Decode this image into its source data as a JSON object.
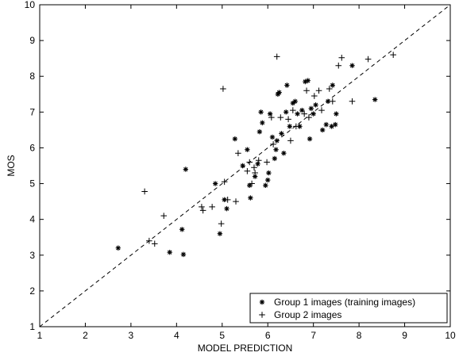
{
  "chart_data": {
    "type": "scatter",
    "xlabel": "MODEL PREDICTION",
    "ylabel": "MOS",
    "xlim": [
      1,
      10
    ],
    "ylim": [
      1,
      10
    ],
    "xticks": [
      1,
      2,
      3,
      4,
      5,
      6,
      7,
      8,
      9,
      10
    ],
    "yticks": [
      1,
      2,
      3,
      4,
      5,
      6,
      7,
      8,
      9,
      10
    ],
    "grid": false,
    "legend_position": "bottom-right",
    "reference_line": {
      "style": "dashed",
      "from": [
        1,
        1
      ],
      "to": [
        10,
        10
      ]
    },
    "series": [
      {
        "name": "Group 1 images (training images)",
        "marker": "asterisk",
        "points": [
          [
            2.72,
            3.2
          ],
          [
            3.85,
            3.08
          ],
          [
            4.15,
            3.02
          ],
          [
            4.12,
            3.72
          ],
          [
            4.2,
            5.4
          ],
          [
            4.85,
            5.0
          ],
          [
            4.95,
            3.6
          ],
          [
            5.1,
            4.3
          ],
          [
            5.05,
            4.55
          ],
          [
            5.28,
            6.25
          ],
          [
            5.45,
            5.5
          ],
          [
            5.55,
            5.95
          ],
          [
            5.6,
            4.95
          ],
          [
            5.62,
            4.6
          ],
          [
            5.72,
            5.2
          ],
          [
            5.78,
            5.55
          ],
          [
            5.82,
            6.45
          ],
          [
            5.85,
            7.0
          ],
          [
            5.88,
            6.7
          ],
          [
            5.95,
            4.95
          ],
          [
            6.0,
            5.1
          ],
          [
            6.02,
            5.3
          ],
          [
            6.05,
            6.95
          ],
          [
            6.1,
            6.3
          ],
          [
            6.15,
            5.7
          ],
          [
            6.18,
            5.95
          ],
          [
            6.2,
            6.2
          ],
          [
            6.22,
            7.5
          ],
          [
            6.25,
            7.55
          ],
          [
            6.3,
            6.4
          ],
          [
            6.35,
            5.85
          ],
          [
            6.4,
            7.0
          ],
          [
            6.42,
            7.75
          ],
          [
            6.48,
            6.6
          ],
          [
            6.55,
            7.25
          ],
          [
            6.6,
            7.3
          ],
          [
            6.65,
            6.95
          ],
          [
            6.7,
            6.6
          ],
          [
            6.75,
            7.05
          ],
          [
            6.82,
            7.85
          ],
          [
            6.88,
            7.88
          ],
          [
            6.92,
            6.25
          ],
          [
            6.95,
            7.1
          ],
          [
            7.0,
            6.95
          ],
          [
            7.05,
            7.2
          ],
          [
            7.2,
            6.5
          ],
          [
            7.28,
            6.65
          ],
          [
            7.32,
            7.3
          ],
          [
            7.4,
            6.6
          ],
          [
            7.42,
            7.75
          ],
          [
            7.48,
            6.65
          ],
          [
            7.5,
            6.95
          ],
          [
            7.85,
            8.3
          ],
          [
            8.35,
            7.35
          ]
        ]
      },
      {
        "name": "Group 2 images",
        "marker": "plus",
        "points": [
          [
            3.3,
            4.78
          ],
          [
            3.4,
            3.4
          ],
          [
            3.52,
            3.32
          ],
          [
            3.72,
            4.1
          ],
          [
            4.55,
            4.35
          ],
          [
            4.58,
            4.25
          ],
          [
            4.78,
            4.35
          ],
          [
            4.98,
            3.88
          ],
          [
            5.02,
            7.65
          ],
          [
            5.05,
            5.05
          ],
          [
            5.12,
            4.55
          ],
          [
            5.3,
            4.5
          ],
          [
            5.35,
            5.85
          ],
          [
            5.55,
            5.35
          ],
          [
            5.6,
            5.6
          ],
          [
            5.65,
            5.0
          ],
          [
            5.7,
            5.45
          ],
          [
            5.72,
            5.3
          ],
          [
            5.8,
            5.65
          ],
          [
            5.98,
            5.6
          ],
          [
            6.08,
            6.85
          ],
          [
            6.12,
            6.1
          ],
          [
            6.2,
            8.55
          ],
          [
            6.28,
            6.85
          ],
          [
            6.45,
            6.8
          ],
          [
            6.5,
            6.2
          ],
          [
            6.55,
            7.05
          ],
          [
            6.62,
            6.6
          ],
          [
            6.8,
            6.95
          ],
          [
            6.85,
            7.6
          ],
          [
            6.9,
            6.85
          ],
          [
            7.02,
            7.45
          ],
          [
            7.12,
            7.6
          ],
          [
            7.18,
            7.05
          ],
          [
            7.35,
            7.65
          ],
          [
            7.42,
            7.3
          ],
          [
            7.55,
            8.3
          ],
          [
            7.62,
            8.52
          ],
          [
            7.85,
            7.3
          ],
          [
            8.2,
            8.48
          ],
          [
            8.75,
            8.6
          ]
        ]
      }
    ]
  }
}
